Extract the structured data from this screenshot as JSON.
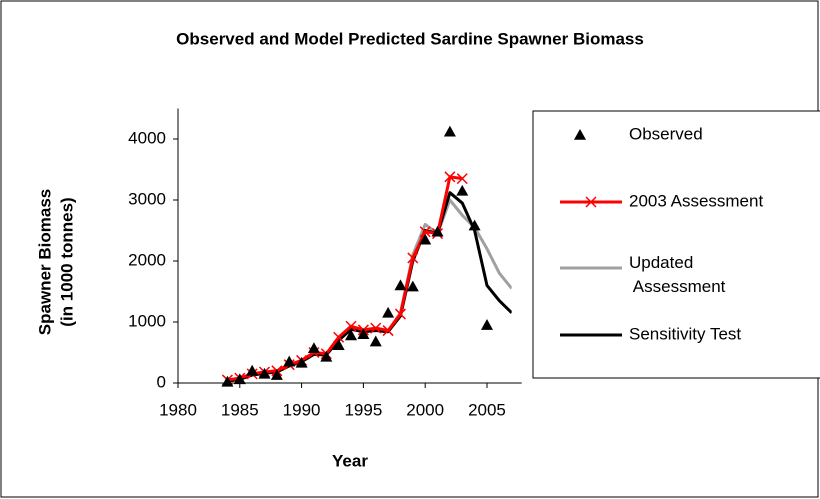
{
  "chart_data": {
    "type": "line",
    "title": "Observed and Model Predicted Sardine Spawner Biomass",
    "x_label": "Year",
    "y_label": [
      "Spawner Biomass",
      "(in 1000 tonnes)"
    ],
    "xlim": [
      1980,
      2007
    ],
    "xticks": [
      1980,
      1985,
      1990,
      1995,
      2000,
      2005
    ],
    "ylim": [
      0,
      4500
    ],
    "yticks": [
      0,
      1000,
      2000,
      3000,
      4000
    ],
    "legend": "right",
    "series": [
      {
        "name": "Observed",
        "style": "marker",
        "color": "#000000",
        "x": [
          1984,
          1985,
          1986,
          1987,
          1988,
          1989,
          1990,
          1991,
          1992,
          1993,
          1994,
          1995,
          1996,
          1997,
          1998,
          1999,
          2000,
          2001,
          2002,
          2003,
          2004,
          2005
        ],
        "values": [
          20,
          60,
          200,
          150,
          130,
          350,
          330,
          570,
          430,
          620,
          780,
          800,
          680,
          1150,
          1600,
          1580,
          2350,
          2480,
          4120,
          3150,
          2580,
          950
        ]
      },
      {
        "name": "2003 Assessment",
        "style": "line-x",
        "color": "#ff0000",
        "x": [
          1984,
          1985,
          1986,
          1987,
          1988,
          1989,
          1990,
          1991,
          1992,
          1993,
          1994,
          1995,
          1996,
          1997,
          1998,
          1999,
          2000,
          2001,
          2002,
          2003
        ],
        "values": [
          50,
          80,
          150,
          180,
          200,
          300,
          370,
          500,
          480,
          750,
          930,
          870,
          900,
          860,
          1130,
          2050,
          2480,
          2450,
          3380,
          3350
        ]
      },
      {
        "name": "Updated Assessment",
        "style": "line",
        "color": "#a0a0a0",
        "x": [
          1984,
          1985,
          1986,
          1987,
          1988,
          1989,
          1990,
          1991,
          1992,
          1993,
          1994,
          1995,
          1996,
          1997,
          1998,
          1999,
          2000,
          2001,
          2002,
          2003,
          2004,
          2005,
          2006,
          2007
        ],
        "values": [
          40,
          70,
          140,
          170,
          190,
          290,
          360,
          480,
          470,
          720,
          900,
          850,
          870,
          850,
          1150,
          2100,
          2600,
          2450,
          3000,
          2750,
          2550,
          2200,
          1800,
          1550
        ]
      },
      {
        "name": "Sensitivity Test",
        "style": "line",
        "color": "#000000",
        "x": [
          1984,
          1985,
          1986,
          1987,
          1988,
          1989,
          1990,
          1991,
          1992,
          1993,
          1994,
          1995,
          1996,
          1997,
          1998,
          1999,
          2000,
          2001,
          2002,
          2003,
          2004,
          2005,
          2006,
          2007
        ],
        "values": [
          30,
          60,
          130,
          160,
          180,
          280,
          350,
          470,
          460,
          700,
          880,
          840,
          860,
          840,
          1100,
          2000,
          2500,
          2450,
          3120,
          2950,
          2500,
          1600,
          1350,
          1150
        ]
      }
    ]
  }
}
